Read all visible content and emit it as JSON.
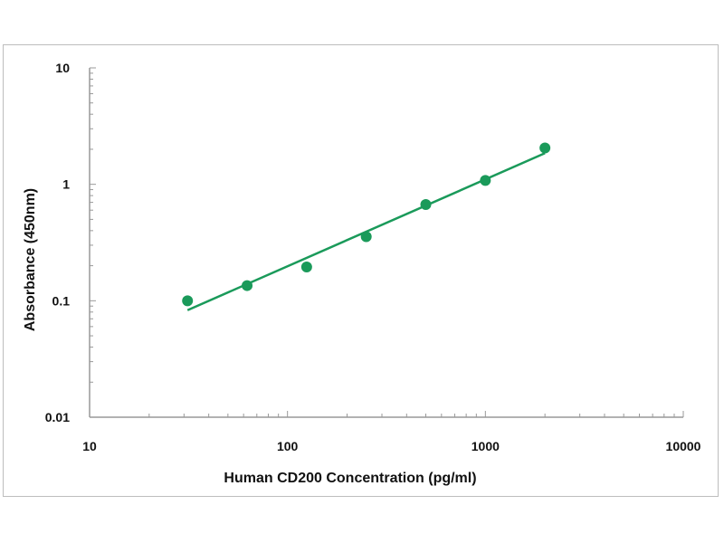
{
  "chart_data": {
    "type": "scatter",
    "title": "",
    "xlabel": "Human CD200 Concentration (pg/ml)",
    "ylabel": "Absorbance (450nm)",
    "x_scale": "log",
    "y_scale": "log",
    "xlim": [
      10,
      10000
    ],
    "ylim": [
      0.01,
      10
    ],
    "x_tick_labels": [
      "10",
      "100",
      "1000",
      "10000"
    ],
    "y_tick_labels": [
      "10",
      "1",
      "0.1",
      "0.01"
    ],
    "grid": false,
    "legend": "none",
    "series": [
      {
        "x": [
          31.25,
          62.5,
          125,
          250,
          500,
          1000,
          2000
        ],
        "y": [
          0.1,
          0.135,
          0.195,
          0.355,
          0.67,
          1.08,
          2.05
        ],
        "color": "#1a9a5a"
      }
    ],
    "fit_line": {
      "x": [
        31.25,
        2000
      ],
      "y": [
        0.083,
        1.85
      ],
      "color": "#1a9a5a"
    }
  }
}
